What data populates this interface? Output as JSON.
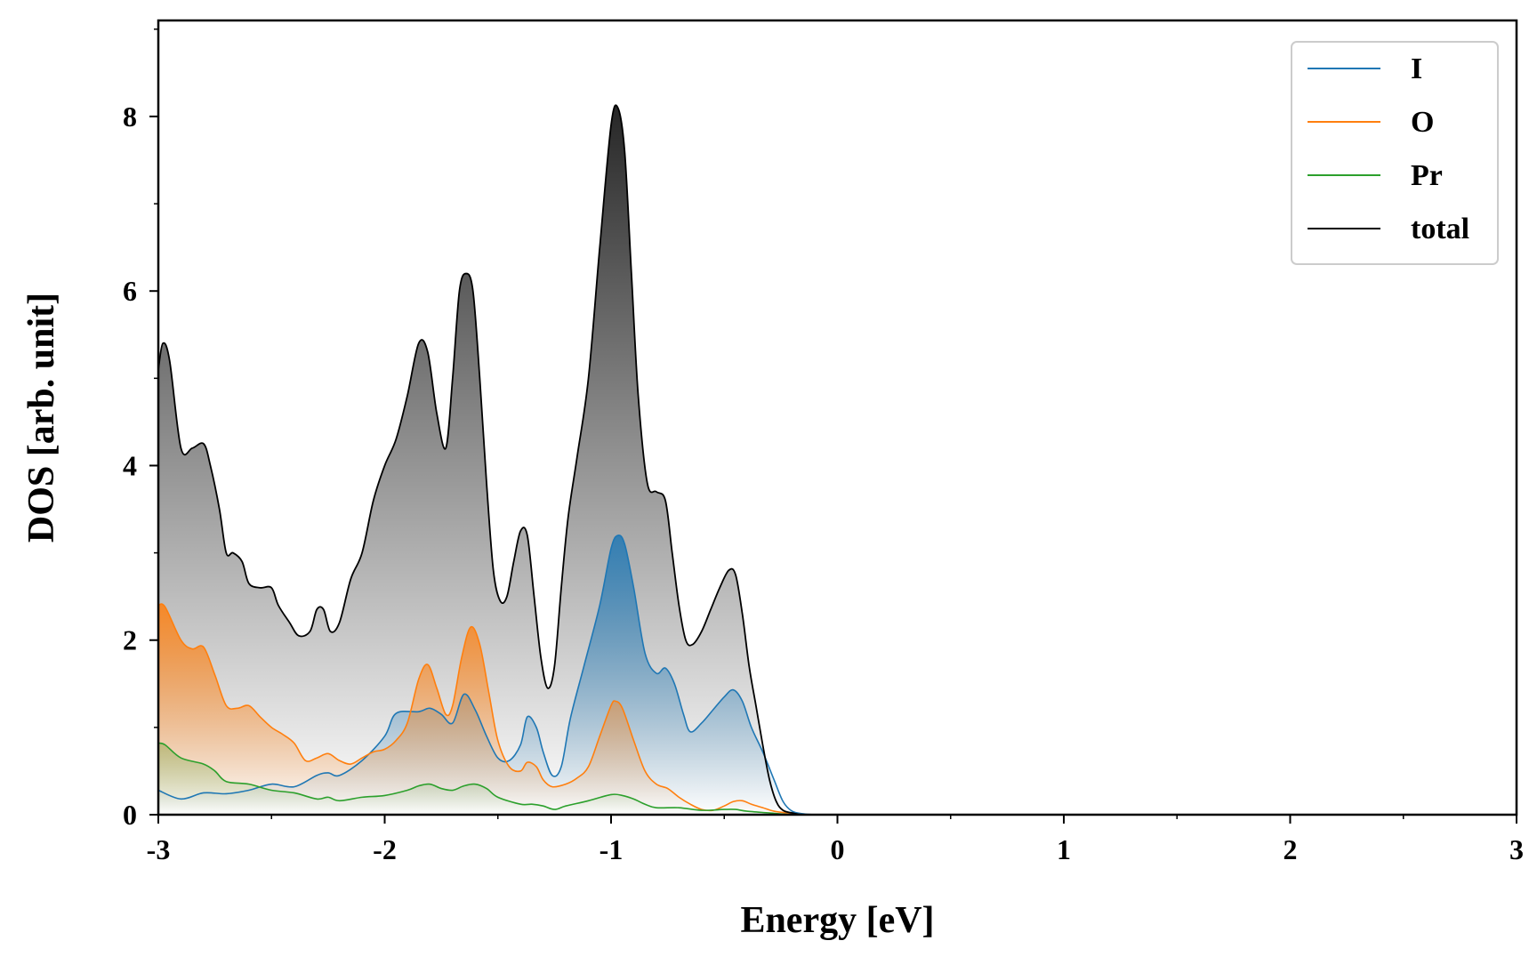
{
  "chart_data": {
    "type": "area",
    "title": "",
    "xlabel": "Energy [eV]",
    "ylabel": "DOS [arb. unit]",
    "xlim": [
      -3,
      3
    ],
    "ylim": [
      0,
      9.1
    ],
    "xticks": [
      -3,
      -2,
      -1,
      0,
      1,
      2,
      3
    ],
    "xtick_labels": [
      "-3",
      "-2",
      "-1",
      "0",
      "1",
      "2",
      "3"
    ],
    "yticks": [
      0,
      2,
      4,
      6,
      8
    ],
    "ytick_labels": [
      "0",
      "2",
      "4",
      "6",
      "8"
    ],
    "grid": false,
    "legend_position": "top-right",
    "series": [
      {
        "name": "I",
        "color": "#1f77b4",
        "x": [
          -3.0,
          -2.9,
          -2.8,
          -2.7,
          -2.6,
          -2.5,
          -2.4,
          -2.3,
          -2.25,
          -2.2,
          -2.1,
          -2.0,
          -1.95,
          -1.85,
          -1.8,
          -1.75,
          -1.7,
          -1.65,
          -1.6,
          -1.55,
          -1.5,
          -1.45,
          -1.4,
          -1.37,
          -1.33,
          -1.3,
          -1.26,
          -1.22,
          -1.18,
          -1.12,
          -1.05,
          -1.0,
          -0.97,
          -0.94,
          -0.9,
          -0.85,
          -0.8,
          -0.76,
          -0.72,
          -0.68,
          -0.65,
          -0.6,
          -0.55,
          -0.5,
          -0.46,
          -0.42,
          -0.38,
          -0.33,
          -0.28,
          -0.24,
          -0.2,
          -0.15,
          -0.1
        ],
        "values": [
          0.28,
          0.18,
          0.25,
          0.24,
          0.28,
          0.35,
          0.32,
          0.45,
          0.48,
          0.45,
          0.62,
          0.9,
          1.16,
          1.18,
          1.22,
          1.15,
          1.05,
          1.38,
          1.2,
          0.9,
          0.65,
          0.62,
          0.8,
          1.12,
          1.0,
          0.72,
          0.45,
          0.55,
          1.1,
          1.7,
          2.4,
          3.05,
          3.2,
          3.1,
          2.6,
          1.85,
          1.62,
          1.68,
          1.5,
          1.15,
          0.95,
          1.05,
          1.2,
          1.35,
          1.43,
          1.3,
          1.0,
          0.72,
          0.4,
          0.15,
          0.04,
          0.01,
          0.0
        ]
      },
      {
        "name": "O",
        "color": "#ff7f0e",
        "x": [
          -3.0,
          -2.97,
          -2.9,
          -2.85,
          -2.8,
          -2.75,
          -2.7,
          -2.65,
          -2.6,
          -2.55,
          -2.5,
          -2.45,
          -2.4,
          -2.35,
          -2.3,
          -2.25,
          -2.2,
          -2.15,
          -2.1,
          -2.05,
          -2.0,
          -1.95,
          -1.9,
          -1.85,
          -1.81,
          -1.77,
          -1.73,
          -1.7,
          -1.66,
          -1.62,
          -1.58,
          -1.54,
          -1.5,
          -1.45,
          -1.4,
          -1.37,
          -1.33,
          -1.3,
          -1.26,
          -1.2,
          -1.15,
          -1.1,
          -1.05,
          -1.0,
          -0.98,
          -0.95,
          -0.9,
          -0.85,
          -0.8,
          -0.75,
          -0.7,
          -0.65,
          -0.6,
          -0.55,
          -0.5,
          -0.46,
          -0.42,
          -0.38,
          -0.33,
          -0.28,
          -0.22,
          -0.15,
          -0.1
        ],
        "values": [
          2.4,
          2.38,
          2.0,
          1.9,
          1.92,
          1.6,
          1.25,
          1.22,
          1.25,
          1.12,
          1.0,
          0.92,
          0.82,
          0.62,
          0.65,
          0.7,
          0.62,
          0.58,
          0.65,
          0.72,
          0.75,
          0.85,
          1.05,
          1.55,
          1.72,
          1.45,
          1.15,
          1.25,
          1.8,
          2.15,
          1.95,
          1.4,
          0.85,
          0.55,
          0.5,
          0.6,
          0.55,
          0.4,
          0.32,
          0.35,
          0.42,
          0.55,
          0.9,
          1.25,
          1.3,
          1.22,
          0.85,
          0.5,
          0.35,
          0.3,
          0.2,
          0.12,
          0.06,
          0.05,
          0.1,
          0.15,
          0.16,
          0.12,
          0.08,
          0.04,
          0.02,
          0.0,
          0.0
        ]
      },
      {
        "name": "Pr",
        "color": "#2ca02c",
        "x": [
          -3.0,
          -2.97,
          -2.9,
          -2.8,
          -2.75,
          -2.7,
          -2.6,
          -2.5,
          -2.4,
          -2.3,
          -2.25,
          -2.2,
          -2.1,
          -2.0,
          -1.9,
          -1.85,
          -1.8,
          -1.75,
          -1.7,
          -1.65,
          -1.6,
          -1.55,
          -1.5,
          -1.4,
          -1.35,
          -1.3,
          -1.25,
          -1.2,
          -1.1,
          -1.0,
          -0.95,
          -0.9,
          -0.85,
          -0.8,
          -0.7,
          -0.6,
          -0.5,
          -0.45,
          -0.4,
          -0.3,
          -0.2,
          -0.1
        ],
        "values": [
          0.82,
          0.8,
          0.65,
          0.58,
          0.5,
          0.38,
          0.35,
          0.28,
          0.25,
          0.18,
          0.2,
          0.16,
          0.2,
          0.22,
          0.28,
          0.33,
          0.35,
          0.3,
          0.28,
          0.33,
          0.35,
          0.3,
          0.2,
          0.12,
          0.12,
          0.1,
          0.06,
          0.1,
          0.16,
          0.23,
          0.22,
          0.18,
          0.12,
          0.08,
          0.08,
          0.05,
          0.06,
          0.06,
          0.04,
          0.02,
          0.0,
          0.0
        ]
      },
      {
        "name": "total",
        "color": "#000000",
        "x": [
          -3.0,
          -2.98,
          -2.95,
          -2.9,
          -2.85,
          -2.8,
          -2.77,
          -2.73,
          -2.7,
          -2.67,
          -2.63,
          -2.6,
          -2.55,
          -2.5,
          -2.47,
          -2.42,
          -2.38,
          -2.33,
          -2.3,
          -2.27,
          -2.24,
          -2.2,
          -2.15,
          -2.1,
          -2.05,
          -2.0,
          -1.95,
          -1.9,
          -1.85,
          -1.81,
          -1.77,
          -1.73,
          -1.7,
          -1.67,
          -1.64,
          -1.61,
          -1.58,
          -1.55,
          -1.52,
          -1.49,
          -1.46,
          -1.43,
          -1.4,
          -1.37,
          -1.34,
          -1.31,
          -1.28,
          -1.25,
          -1.22,
          -1.19,
          -1.15,
          -1.1,
          -1.05,
          -1.0,
          -0.97,
          -0.94,
          -0.91,
          -0.88,
          -0.84,
          -0.8,
          -0.76,
          -0.73,
          -0.7,
          -0.67,
          -0.64,
          -0.6,
          -0.56,
          -0.52,
          -0.48,
          -0.45,
          -0.42,
          -0.39,
          -0.36,
          -0.33,
          -0.3,
          -0.27,
          -0.24,
          -0.2,
          -0.16,
          -0.12,
          -0.08,
          0.0
        ],
        "values": [
          5.1,
          5.4,
          5.2,
          4.2,
          4.2,
          4.25,
          4.0,
          3.5,
          3.0,
          3.0,
          2.9,
          2.65,
          2.6,
          2.6,
          2.4,
          2.2,
          2.05,
          2.1,
          2.35,
          2.35,
          2.1,
          2.2,
          2.7,
          3.0,
          3.6,
          4.0,
          4.3,
          4.8,
          5.4,
          5.3,
          4.6,
          4.2,
          5.0,
          6.0,
          6.2,
          6.0,
          5.0,
          3.8,
          2.8,
          2.45,
          2.5,
          2.9,
          3.25,
          3.2,
          2.5,
          1.8,
          1.45,
          1.7,
          2.6,
          3.4,
          4.1,
          5.0,
          6.5,
          7.9,
          8.1,
          7.6,
          6.2,
          4.8,
          3.8,
          3.7,
          3.6,
          3.0,
          2.4,
          2.0,
          1.95,
          2.1,
          2.35,
          2.6,
          2.8,
          2.75,
          2.3,
          1.7,
          1.25,
          0.8,
          0.4,
          0.15,
          0.05,
          0.02,
          0.0,
          0.0,
          0.0,
          0.0
        ]
      }
    ]
  }
}
